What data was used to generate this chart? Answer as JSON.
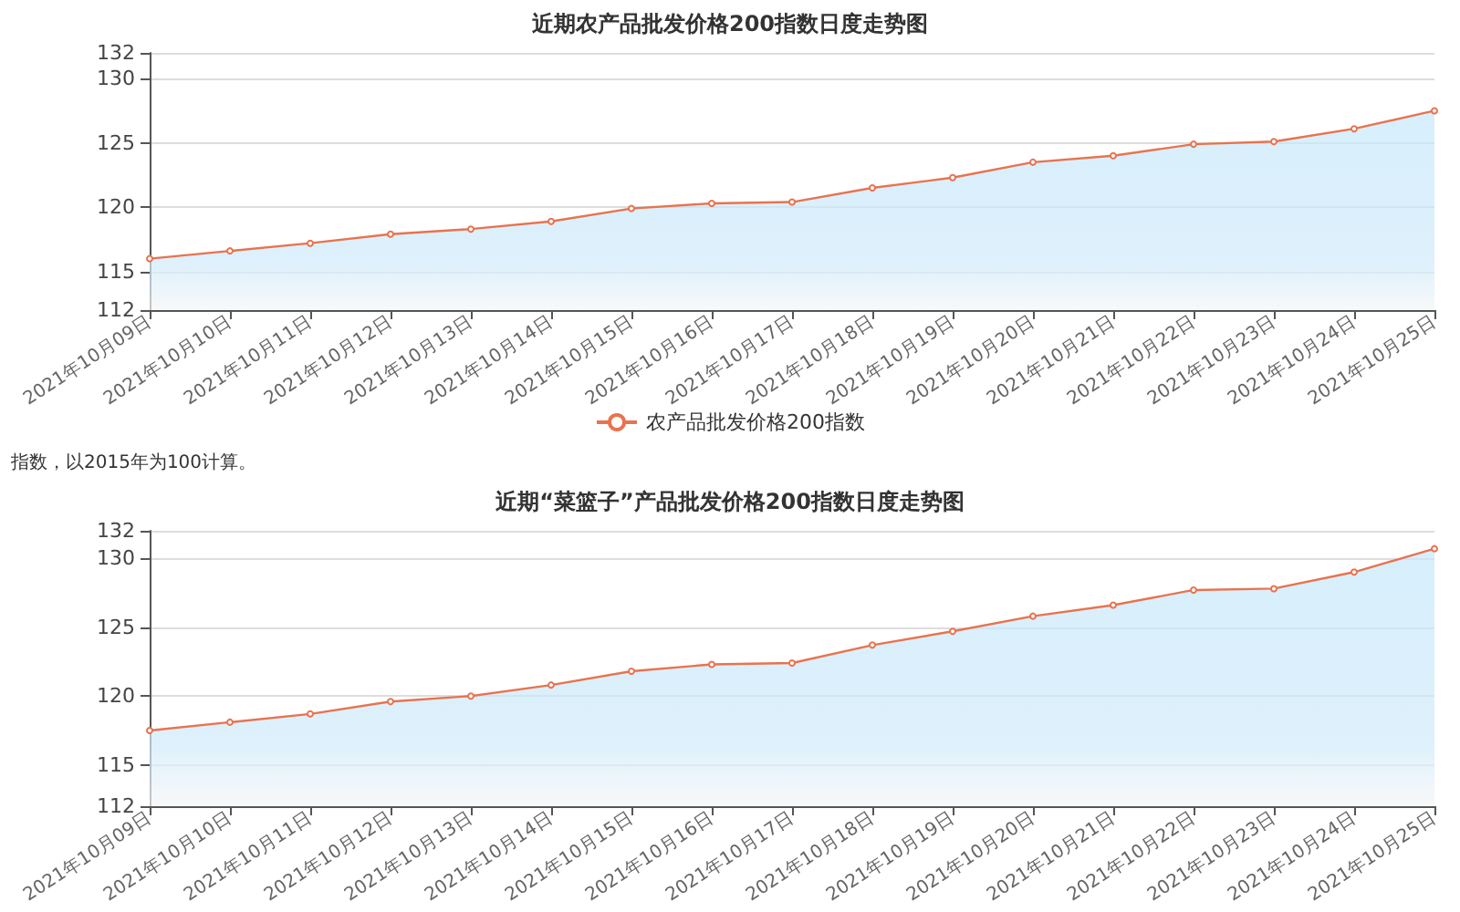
{
  "chart_data": [
    {
      "type": "area",
      "title": "近期农产品批发价格200指数日度走势图",
      "categories": [
        "2021年10月09日",
        "2021年10月10日",
        "2021年10月11日",
        "2021年10月12日",
        "2021年10月13日",
        "2021年10月14日",
        "2021年10月15日",
        "2021年10月16日",
        "2021年10月17日",
        "2021年10月18日",
        "2021年10月19日",
        "2021年10月20日",
        "2021年10月21日",
        "2021年10月22日",
        "2021年10月23日",
        "2021年10月24日",
        "2021年10月25日"
      ],
      "series": [
        {
          "name": "农产品批发价格200指数",
          "color": "#e8734f",
          "values": [
            116.0,
            116.6,
            117.2,
            117.9,
            118.3,
            118.9,
            119.9,
            120.3,
            120.4,
            121.5,
            122.3,
            123.5,
            124.0,
            124.9,
            125.1,
            126.1,
            127.5
          ]
        }
      ],
      "ylim": [
        112,
        132
      ],
      "yticks": [
        112,
        115,
        120,
        125,
        130,
        132
      ],
      "grid": "y",
      "legend": "bottom",
      "marker": "circle",
      "line_style": "solid",
      "annotations": [
        "指数，以2015年为100计算。"
      ]
    },
    {
      "type": "area",
      "title": "近期“菜篮子”产品批发价格200指数日度走势图",
      "categories": [
        "2021年10月09日",
        "2021年10月10日",
        "2021年10月11日",
        "2021年10月12日",
        "2021年10月13日",
        "2021年10月14日",
        "2021年10月15日",
        "2021年10月16日",
        "2021年10月17日",
        "2021年10月18日",
        "2021年10月19日",
        "2021年10月20日",
        "2021年10月21日",
        "2021年10月22日",
        "2021年10月23日",
        "2021年10月24日",
        "2021年10月25日"
      ],
      "series": [
        {
          "color": "#e8734f",
          "values": [
            117.5,
            118.1,
            118.7,
            119.6,
            120.0,
            120.8,
            121.8,
            122.3,
            122.4,
            123.7,
            124.7,
            125.8,
            126.6,
            127.7,
            127.8,
            129.0,
            130.7
          ]
        }
      ],
      "ylim": [
        112,
        132
      ],
      "yticks": [
        112,
        115,
        120,
        125,
        130,
        132
      ],
      "grid": "y",
      "legend": false,
      "marker": "circle",
      "line_style": "solid"
    }
  ]
}
